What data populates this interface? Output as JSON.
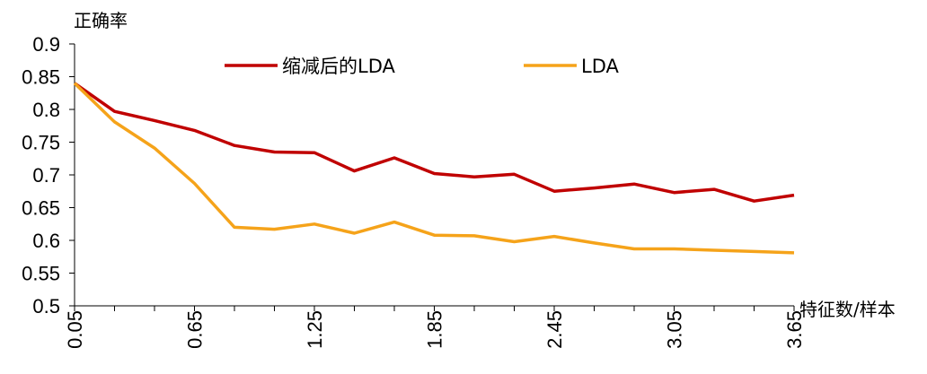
{
  "chart_data": {
    "type": "line",
    "ylabel": "正确率",
    "xlabel": "特征数/样本",
    "ylim": [
      0.5,
      0.9
    ],
    "yticks": [
      "0.5",
      "0.55",
      "0.6",
      "0.65",
      "0.7",
      "0.75",
      "0.8",
      "0.85",
      "0.9"
    ],
    "xtick_labels": [
      "0.05",
      "0.65",
      "1.25",
      "1.85",
      "2.45",
      "3.05",
      "3.65"
    ],
    "x": [
      0.05,
      0.25,
      0.45,
      0.65,
      0.85,
      1.05,
      1.25,
      1.45,
      1.65,
      1.85,
      2.05,
      2.25,
      2.45,
      2.65,
      2.85,
      3.05,
      3.25,
      3.45,
      3.65
    ],
    "legend_position": "top",
    "grid": false,
    "series": [
      {
        "name": "缩减后的LDA",
        "color": "#c00000",
        "values": [
          0.84,
          0.797,
          0.783,
          0.768,
          0.745,
          0.735,
          0.734,
          0.706,
          0.726,
          0.702,
          0.697,
          0.701,
          0.675,
          0.68,
          0.686,
          0.673,
          0.678,
          0.66,
          0.669
        ]
      },
      {
        "name": "LDA",
        "color": "#f5a31a",
        "values": [
          0.84,
          0.781,
          0.741,
          0.687,
          0.62,
          0.617,
          0.625,
          0.611,
          0.628,
          0.608,
          0.607,
          0.598,
          0.606,
          0.596,
          0.587,
          0.587,
          0.585,
          0.583,
          0.581
        ]
      }
    ]
  }
}
